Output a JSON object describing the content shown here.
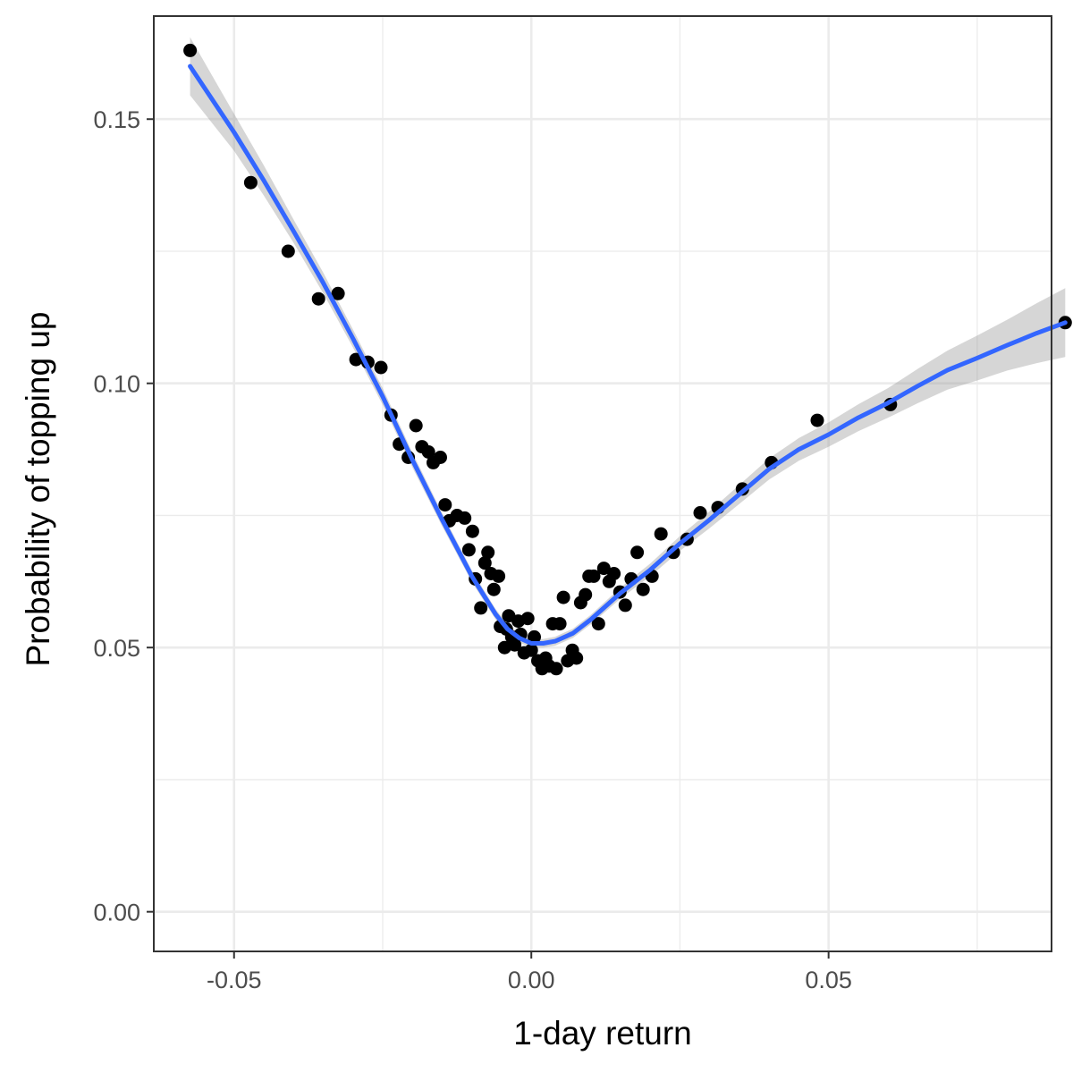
{
  "chart_data": {
    "type": "scatter",
    "title": "",
    "xlabel": "1-day return",
    "ylabel": "Probability of topping up",
    "xlim": [
      -0.0635,
      0.0875
    ],
    "ylim": [
      -0.0075,
      0.1695
    ],
    "x_ticks": [
      -0.05,
      0.0,
      0.05
    ],
    "x_tick_labels": [
      "-0.05",
      "0.00",
      "0.05"
    ],
    "y_ticks": [
      0.0,
      0.05,
      0.1,
      0.15
    ],
    "y_tick_labels": [
      "0.00",
      "0.05",
      "0.10",
      "0.15"
    ],
    "x_minor_ticks": [
      -0.025,
      0.025,
      0.075
    ],
    "y_minor_ticks": [
      0.025,
      0.075,
      0.125
    ],
    "grid": true,
    "legend": "none",
    "colors": {
      "points": "#000000",
      "smooth_line": "#3366ff",
      "confidence_band": "#999999",
      "grid": "#ebebeb",
      "panel_border": "#333333"
    },
    "points": [
      [
        -0.0574,
        0.163
      ],
      [
        -0.0472,
        0.138
      ],
      [
        -0.0409,
        0.125
      ],
      [
        -0.0358,
        0.116
      ],
      [
        -0.0325,
        0.117
      ],
      [
        -0.0295,
        0.1045
      ],
      [
        -0.0275,
        0.104
      ],
      [
        -0.0253,
        0.103
      ],
      [
        -0.0236,
        0.094
      ],
      [
        -0.0222,
        0.0885
      ],
      [
        -0.0207,
        0.086
      ],
      [
        -0.0194,
        0.092
      ],
      [
        -0.0184,
        0.088
      ],
      [
        -0.0173,
        0.087
      ],
      [
        -0.0165,
        0.085
      ],
      [
        -0.0153,
        0.086
      ],
      [
        -0.0145,
        0.077
      ],
      [
        -0.0138,
        0.074
      ],
      [
        -0.0125,
        0.075
      ],
      [
        -0.0112,
        0.0745
      ],
      [
        -0.0105,
        0.0685
      ],
      [
        -0.0099,
        0.072
      ],
      [
        -0.0094,
        0.063
      ],
      [
        -0.0085,
        0.0575
      ],
      [
        -0.0078,
        0.066
      ],
      [
        -0.0073,
        0.068
      ],
      [
        -0.0068,
        0.064
      ],
      [
        -0.0063,
        0.061
      ],
      [
        -0.0055,
        0.0635
      ],
      [
        -0.0052,
        0.054
      ],
      [
        -0.0045,
        0.05
      ],
      [
        -0.0042,
        0.0535
      ],
      [
        -0.0038,
        0.056
      ],
      [
        -0.0033,
        0.052
      ],
      [
        -0.0028,
        0.0505
      ],
      [
        -0.0022,
        0.055
      ],
      [
        -0.0018,
        0.0525
      ],
      [
        -0.0012,
        0.049
      ],
      [
        -0.0006,
        0.0555
      ],
      [
        0.0,
        0.0495
      ],
      [
        0.0005,
        0.052
      ],
      [
        0.0011,
        0.0475
      ],
      [
        0.0018,
        0.046
      ],
      [
        0.0024,
        0.048
      ],
      [
        0.003,
        0.0465
      ],
      [
        0.0036,
        0.0545
      ],
      [
        0.0042,
        0.046
      ],
      [
        0.0048,
        0.0545
      ],
      [
        0.0054,
        0.0595
      ],
      [
        0.0061,
        0.0475
      ],
      [
        0.0069,
        0.0495
      ],
      [
        0.0076,
        0.048
      ],
      [
        0.0083,
        0.0585
      ],
      [
        0.0091,
        0.06
      ],
      [
        0.0097,
        0.0635
      ],
      [
        0.0105,
        0.0635
      ],
      [
        0.0113,
        0.0545
      ],
      [
        0.0122,
        0.065
      ],
      [
        0.0131,
        0.0625
      ],
      [
        0.0139,
        0.064
      ],
      [
        0.0149,
        0.0605
      ],
      [
        0.0158,
        0.058
      ],
      [
        0.0168,
        0.063
      ],
      [
        0.0178,
        0.068
      ],
      [
        0.0188,
        0.061
      ],
      [
        0.0203,
        0.0635
      ],
      [
        0.0218,
        0.0715
      ],
      [
        0.0239,
        0.068
      ],
      [
        0.0262,
        0.0705
      ],
      [
        0.0284,
        0.0755
      ],
      [
        0.0314,
        0.0765
      ],
      [
        0.0355,
        0.08
      ],
      [
        0.0404,
        0.085
      ],
      [
        0.0481,
        0.093
      ],
      [
        0.0604,
        0.096
      ],
      [
        0.0898,
        0.1115
      ]
    ],
    "smooth_line": [
      [
        -0.0574,
        0.16
      ],
      [
        -0.05,
        0.1475
      ],
      [
        -0.045,
        0.1384
      ],
      [
        -0.04,
        0.1288
      ],
      [
        -0.035,
        0.119
      ],
      [
        -0.03,
        0.1085
      ],
      [
        -0.025,
        0.0975
      ],
      [
        -0.02,
        0.0855
      ],
      [
        -0.015,
        0.0742
      ],
      [
        -0.01,
        0.0635
      ],
      [
        -0.006,
        0.0563
      ],
      [
        -0.004,
        0.0535
      ],
      [
        -0.002,
        0.0518
      ],
      [
        0.0,
        0.0508
      ],
      [
        0.002,
        0.0508
      ],
      [
        0.004,
        0.0512
      ],
      [
        0.007,
        0.0527
      ],
      [
        0.01,
        0.0553
      ],
      [
        0.015,
        0.0603
      ],
      [
        0.02,
        0.0647
      ],
      [
        0.025,
        0.0697
      ],
      [
        0.03,
        0.0742
      ],
      [
        0.035,
        0.079
      ],
      [
        0.04,
        0.0838
      ],
      [
        0.045,
        0.0875
      ],
      [
        0.05,
        0.0903
      ],
      [
        0.055,
        0.0935
      ],
      [
        0.06,
        0.0963
      ],
      [
        0.065,
        0.0995
      ],
      [
        0.07,
        0.1025
      ],
      [
        0.075,
        0.1048
      ],
      [
        0.08,
        0.1072
      ],
      [
        0.085,
        0.1095
      ],
      [
        0.0898,
        0.1115
      ]
    ],
    "band_halfwidth": [
      [
        -0.0574,
        0.0055
      ],
      [
        -0.05,
        0.0035
      ],
      [
        -0.04,
        0.0022
      ],
      [
        -0.03,
        0.0017
      ],
      [
        -0.02,
        0.0014
      ],
      [
        -0.01,
        0.0011
      ],
      [
        0.0,
        0.0008
      ],
      [
        0.01,
        0.0009
      ],
      [
        0.02,
        0.0012
      ],
      [
        0.03,
        0.0016
      ],
      [
        0.04,
        0.002
      ],
      [
        0.05,
        0.0023
      ],
      [
        0.06,
        0.0028
      ],
      [
        0.07,
        0.0037
      ],
      [
        0.08,
        0.0048
      ],
      [
        0.0898,
        0.0065
      ]
    ]
  }
}
